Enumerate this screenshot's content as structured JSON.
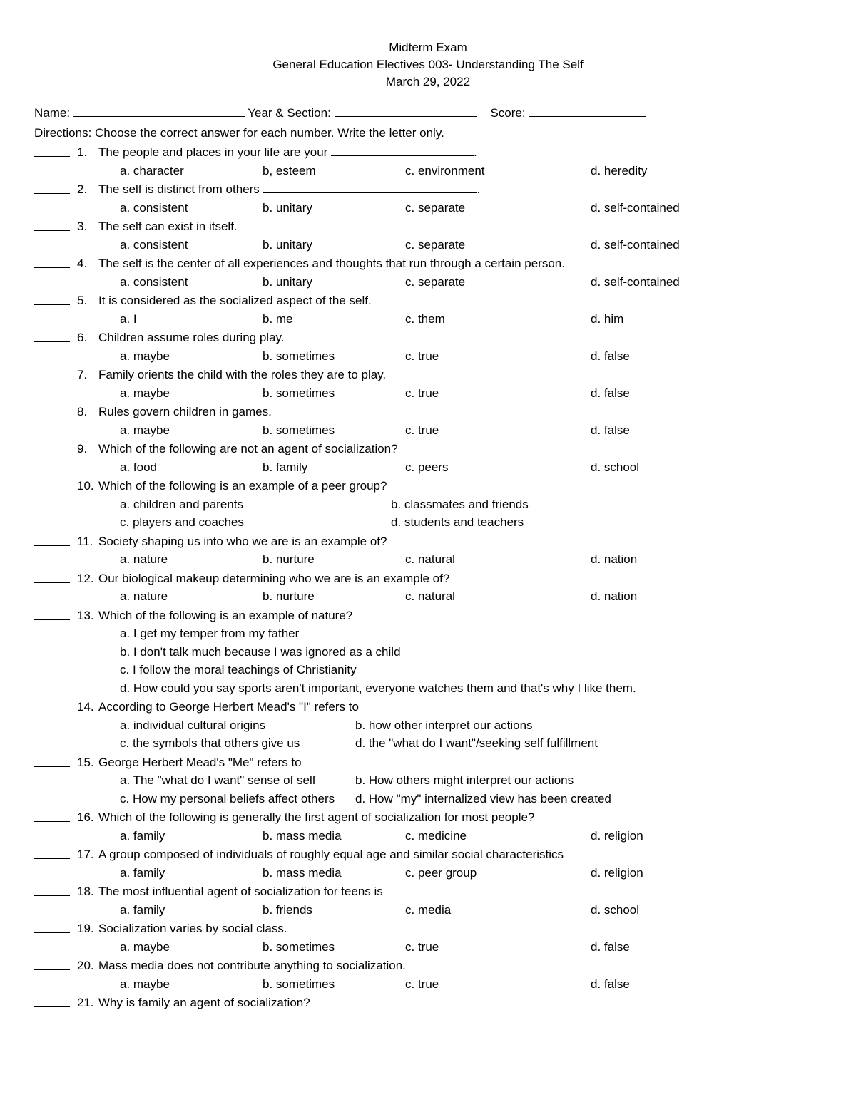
{
  "header": {
    "line1": "Midterm Exam",
    "line2": "General Education Electives 003- Understanding The Self",
    "line3": "March 29, 2022"
  },
  "labels": {
    "name": "Name:",
    "year_section": "Year & Section:",
    "score": "Score:",
    "directions": "Directions: Choose the correct answer for each number. Write the letter only."
  },
  "questions": [
    {
      "n": "1.",
      "stem": "The people and places in your life are your ",
      "trail_ul": 200,
      "trail_period": true,
      "opts4": [
        "a. character",
        "b, esteem",
        "c. environment",
        "d. heredity"
      ]
    },
    {
      "n": "2.",
      "stem": "The self is distinct from others ",
      "trail_ul": 300,
      "trail_period": true,
      "opts4": [
        "a. consistent",
        "b. unitary",
        "c. separate",
        "d. self-contained"
      ]
    },
    {
      "n": "3.",
      "stem": "The self can exist in itself.",
      "opts4": [
        "a. consistent",
        "b. unitary",
        "c. separate",
        "d. self-contained"
      ]
    },
    {
      "n": "4.",
      "stem": "The self is the center of all experiences and thoughts that run through a certain person.",
      "opts4": [
        "a. consistent",
        "b. unitary",
        "c. separate",
        "d. self-contained"
      ]
    },
    {
      "n": "5.",
      "stem": "It is considered as the socialized aspect of the self.",
      "opts4": [
        "a. I",
        "b. me",
        "c. them",
        "d. him"
      ]
    },
    {
      "n": "6.",
      "stem": "Children assume roles during play.",
      "opts4": [
        "a. maybe",
        "b. sometimes",
        "c. true",
        "d. false"
      ]
    },
    {
      "n": "7.",
      "stem": "Family orients the child with the roles they are to play.",
      "opts4": [
        "a. maybe",
        "b. sometimes",
        "c. true",
        "d. false"
      ]
    },
    {
      "n": "8.",
      "stem": "Rules govern children in games.",
      "opts4": [
        "a. maybe",
        "b. sometimes",
        "c. true",
        "d. false"
      ]
    },
    {
      "n": "9.",
      "stem": "Which of the following are not an agent of socialization?",
      "opts4": [
        "a. food",
        "b. family",
        "c. peers",
        "d. school"
      ]
    },
    {
      "n": "10.",
      "stem": "Which of the following is an example of a peer group?",
      "opts2": [
        "a. children and parents",
        "b. classmates and friends",
        "c. players and coaches",
        "d. students and teachers"
      ]
    },
    {
      "n": "11.",
      "stem": "Society shaping us into who we are is an example of?",
      "opts4": [
        "a. nature",
        "b. nurture",
        "c. natural",
        "d. nation"
      ]
    },
    {
      "n": "12.",
      "stem": "Our biological makeup determining who we are is an example of?",
      "opts4": [
        "a. nature",
        "b. nurture",
        "c. natural",
        "d. nation"
      ]
    },
    {
      "n": "13.",
      "stem": "Which of the following is an example of nature?",
      "opts_stack": [
        "a. I get my temper from my father",
        "b. I don't talk much because I was ignored as a child",
        "c. I follow the moral teachings of Christianity",
        "d. How could you say sports aren't important, everyone watches them and that's why I like them."
      ]
    },
    {
      "n": "14.",
      "stem": "According to George Herbert Mead's \"I\" refers to",
      "opts2b": [
        "a. individual cultural origins",
        "b. how other interpret our actions",
        "c. the symbols that others give us",
        "d. the \"what do I want\"/seeking self fulfillment"
      ]
    },
    {
      "n": "15.",
      "stem": "George Herbert Mead's \"Me\" refers to",
      "opts2b": [
        "a. The \"what do I want\" sense of self",
        "b. How others might interpret our actions",
        "c. How my personal beliefs affect others",
        "d. How \"my\" internalized view has been created"
      ]
    },
    {
      "n": "16.",
      "stem": "Which of the following is generally the first agent of socialization for most people?",
      "opts4": [
        "a. family",
        "b. mass media",
        "c. medicine",
        "d. religion"
      ]
    },
    {
      "n": "17.",
      "stem": "A group composed of individuals of roughly equal age and similar social characteristics",
      "opts4": [
        "a. family",
        "b. mass media",
        "c. peer group",
        "d. religion"
      ]
    },
    {
      "n": "18.",
      "stem": "The most influential agent of socialization for teens is",
      "opts4": [
        "a. family",
        "b. friends",
        "c. media",
        "d. school"
      ]
    },
    {
      "n": "19.",
      "stem": "Socialization varies by social class.",
      "opts4": [
        "a. maybe",
        "b. sometimes",
        "c. true",
        "d. false"
      ]
    },
    {
      "n": "20.",
      "stem": "Mass media does not contribute anything to socialization.",
      "opts4": [
        "a. maybe",
        "b. sometimes",
        "c. true",
        "d. false"
      ]
    },
    {
      "n": "21.",
      "stem": "Why is family an agent of socialization?"
    }
  ]
}
